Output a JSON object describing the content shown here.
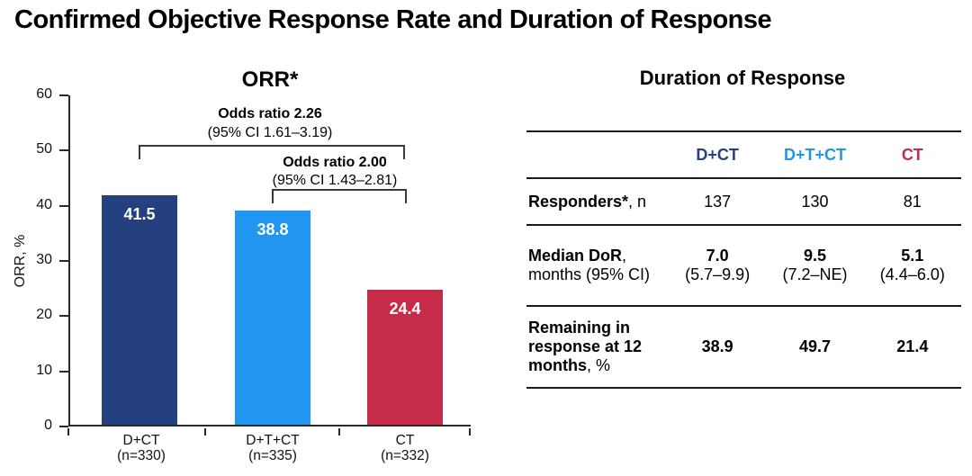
{
  "page_title": "Confirmed Objective Response Rate and Duration of Response",
  "colors": {
    "navy": "#24407E",
    "light_blue": "#2196F0",
    "crimson": "#C62B49",
    "axis": "#2a2a2a"
  },
  "chart_data": [
    {
      "type": "bar",
      "title": "ORR*",
      "xlabel": "",
      "ylabel": "ORR, %",
      "ylim": [
        0,
        60
      ],
      "yticks": [
        0,
        10,
        20,
        30,
        40,
        50,
        60
      ],
      "grid": false,
      "categories": [
        "D+CT",
        "D+T+CT",
        "CT"
      ],
      "category_sublabels": [
        "(n=330)",
        "(n=335)",
        "(n=332)"
      ],
      "values": [
        41.5,
        38.8,
        24.4
      ],
      "bar_colors": [
        "#24407E",
        "#2196F0",
        "#C62B49"
      ],
      "annotations": [
        {
          "title": "Odds ratio 2.26",
          "ci": "(95% CI 1.61–3.19)",
          "compares": [
            "D+CT",
            "CT"
          ]
        },
        {
          "title": "Odds ratio 2.00",
          "ci": "(95% CI 1.43–2.81)",
          "compares": [
            "D+T+CT",
            "CT"
          ]
        }
      ]
    },
    {
      "type": "table",
      "title": "Duration of Response",
      "columns": [
        {
          "label": "D+CT",
          "color": "#24407E"
        },
        {
          "label": "D+T+CT",
          "color": "#2196F0"
        },
        {
          "label": "CT",
          "color": "#C62B49"
        }
      ],
      "rows": [
        {
          "label_bold": "Responders*",
          "label_rest": ", n",
          "values": [
            "137",
            "130",
            "81"
          ]
        },
        {
          "label_bold": "Median DoR",
          "label_comma": ",",
          "label_sub": "months (95% CI)",
          "values_main": [
            "7.0",
            "9.5",
            "5.1"
          ],
          "values_sub": [
            "(5.7–9.9)",
            "(7.2–NE)",
            "(4.4–6.0)"
          ]
        },
        {
          "label_bold": "Remaining in response at 12 months",
          "label_rest": ", %",
          "values": [
            "38.9",
            "49.7",
            "21.4"
          ]
        }
      ]
    }
  ]
}
